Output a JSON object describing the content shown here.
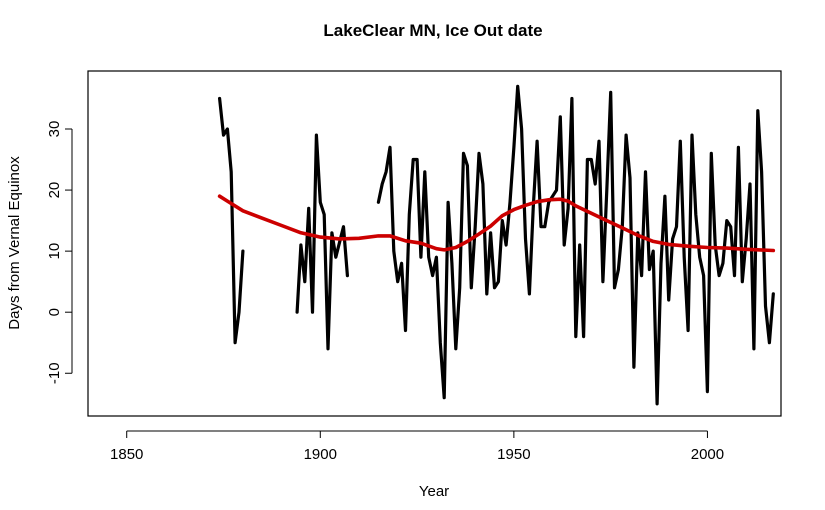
{
  "chart_data": {
    "type": "line",
    "title": "LakeClear MN, Ice Out date",
    "xlabel": "Year",
    "ylabel": "Days from Vernal Equinox",
    "xlim": [
      1840,
      2019
    ],
    "ylim": [
      -17,
      39.5
    ],
    "x_ticks": [
      1850,
      1900,
      1950,
      2000
    ],
    "y_ticks": [
      -10,
      0,
      10,
      20,
      30
    ],
    "series": [
      {
        "color": "#000000",
        "segments": [
          [
            [
              1874,
              35
            ],
            [
              1875,
              29
            ],
            [
              1876,
              30
            ],
            [
              1877,
              23
            ],
            [
              1878,
              -5
            ],
            [
              1879,
              0
            ],
            [
              1880,
              10
            ]
          ],
          [
            [
              1894,
              0
            ],
            [
              1895,
              11
            ],
            [
              1896,
              5
            ],
            [
              1897,
              17
            ],
            [
              1898,
              0
            ],
            [
              1899,
              29
            ],
            [
              1900,
              18
            ],
            [
              1901,
              16
            ],
            [
              1902,
              -6
            ],
            [
              1903,
              13
            ],
            [
              1904,
              9
            ],
            [
              1906,
              14
            ],
            [
              1907,
              6
            ]
          ],
          [
            [
              1915,
              18
            ],
            [
              1916,
              21
            ],
            [
              1917,
              23
            ],
            [
              1918,
              27
            ],
            [
              1919,
              10
            ],
            [
              1920,
              5
            ],
            [
              1921,
              8
            ],
            [
              1922,
              -3
            ],
            [
              1923,
              16
            ],
            [
              1924,
              25
            ],
            [
              1925,
              25
            ],
            [
              1926,
              9
            ],
            [
              1927,
              23
            ],
            [
              1928,
              9
            ],
            [
              1929,
              6
            ],
            [
              1930,
              9
            ],
            [
              1931,
              -5
            ],
            [
              1932,
              -14
            ],
            [
              1933,
              18
            ],
            [
              1934,
              8
            ],
            [
              1935,
              -6
            ],
            [
              1936,
              4
            ],
            [
              1937,
              26
            ],
            [
              1938,
              24
            ],
            [
              1939,
              4
            ],
            [
              1940,
              14
            ],
            [
              1941,
              26
            ],
            [
              1942,
              21
            ],
            [
              1943,
              3
            ],
            [
              1944,
              13
            ],
            [
              1945,
              4
            ],
            [
              1946,
              5
            ],
            [
              1947,
              15
            ],
            [
              1948,
              11
            ],
            [
              1949,
              18
            ],
            [
              1950,
              27
            ],
            [
              1951,
              37
            ],
            [
              1952,
              30
            ],
            [
              1953,
              12
            ],
            [
              1954,
              3
            ],
            [
              1955,
              17
            ],
            [
              1956,
              28
            ],
            [
              1957,
              14
            ],
            [
              1958,
              14
            ],
            [
              1959,
              18
            ],
            [
              1960,
              19
            ],
            [
              1961,
              20
            ],
            [
              1962,
              32
            ],
            [
              1963,
              11
            ],
            [
              1964,
              17
            ],
            [
              1965,
              35
            ],
            [
              1966,
              -4
            ],
            [
              1967,
              11
            ],
            [
              1968,
              -4
            ],
            [
              1969,
              25
            ],
            [
              1970,
              25
            ],
            [
              1971,
              21
            ],
            [
              1972,
              28
            ],
            [
              1973,
              5
            ],
            [
              1974,
              20
            ],
            [
              1975,
              36
            ],
            [
              1976,
              4
            ],
            [
              1977,
              7
            ],
            [
              1978,
              14
            ],
            [
              1979,
              29
            ],
            [
              1980,
              22
            ],
            [
              1981,
              -9
            ],
            [
              1982,
              13
            ],
            [
              1983,
              6
            ],
            [
              1984,
              23
            ],
            [
              1985,
              7
            ],
            [
              1986,
              10
            ],
            [
              1987,
              -15
            ],
            [
              1988,
              8
            ],
            [
              1989,
              19
            ],
            [
              1990,
              2
            ],
            [
              1991,
              12
            ],
            [
              1992,
              14
            ],
            [
              1993,
              28
            ],
            [
              1994,
              9
            ],
            [
              1995,
              -3
            ],
            [
              1996,
              29
            ],
            [
              1997,
              16
            ],
            [
              1998,
              9
            ],
            [
              1999,
              6
            ],
            [
              2000,
              -13
            ],
            [
              2001,
              26
            ],
            [
              2002,
              11
            ],
            [
              2003,
              6
            ],
            [
              2004,
              8
            ],
            [
              2005,
              15
            ],
            [
              2006,
              14
            ],
            [
              2007,
              6
            ],
            [
              2008,
              27
            ],
            [
              2009,
              5
            ],
            [
              2010,
              12
            ],
            [
              2011,
              21
            ],
            [
              2012,
              -6
            ],
            [
              2013,
              33
            ],
            [
              2014,
              23
            ],
            [
              2015,
              1
            ],
            [
              2016,
              -5
            ],
            [
              2017,
              3
            ]
          ]
        ]
      },
      {
        "color": "#cc0000",
        "segments": [
          [
            [
              1874,
              19
            ],
            [
              1876,
              18.2
            ],
            [
              1880,
              16.6
            ],
            [
              1885,
              15.4
            ],
            [
              1890,
              14.2
            ],
            [
              1895,
              13
            ],
            [
              1900,
              12.3
            ],
            [
              1905,
              12
            ],
            [
              1910,
              12.1
            ],
            [
              1915,
              12.5
            ],
            [
              1918,
              12.5
            ],
            [
              1922,
              11.7
            ],
            [
              1926,
              11.3
            ],
            [
              1930,
              10.4
            ],
            [
              1932,
              10.2
            ],
            [
              1935,
              10.6
            ],
            [
              1938,
              11.6
            ],
            [
              1941,
              12.8
            ],
            [
              1944,
              14.1
            ],
            [
              1947,
              15.8
            ],
            [
              1950,
              16.8
            ],
            [
              1953,
              17.5
            ],
            [
              1956,
              18.1
            ],
            [
              1959,
              18.4
            ],
            [
              1962,
              18.5
            ],
            [
              1964,
              18.2
            ],
            [
              1966,
              17.4
            ],
            [
              1970,
              16.2
            ],
            [
              1974,
              15
            ],
            [
              1978,
              13.8
            ],
            [
              1982,
              12.6
            ],
            [
              1986,
              11.6
            ],
            [
              1990,
              11.1
            ],
            [
              1995,
              10.8
            ],
            [
              2000,
              10.6
            ],
            [
              2005,
              10.5
            ],
            [
              2010,
              10.3
            ],
            [
              2017,
              10.1
            ]
          ]
        ]
      }
    ]
  }
}
